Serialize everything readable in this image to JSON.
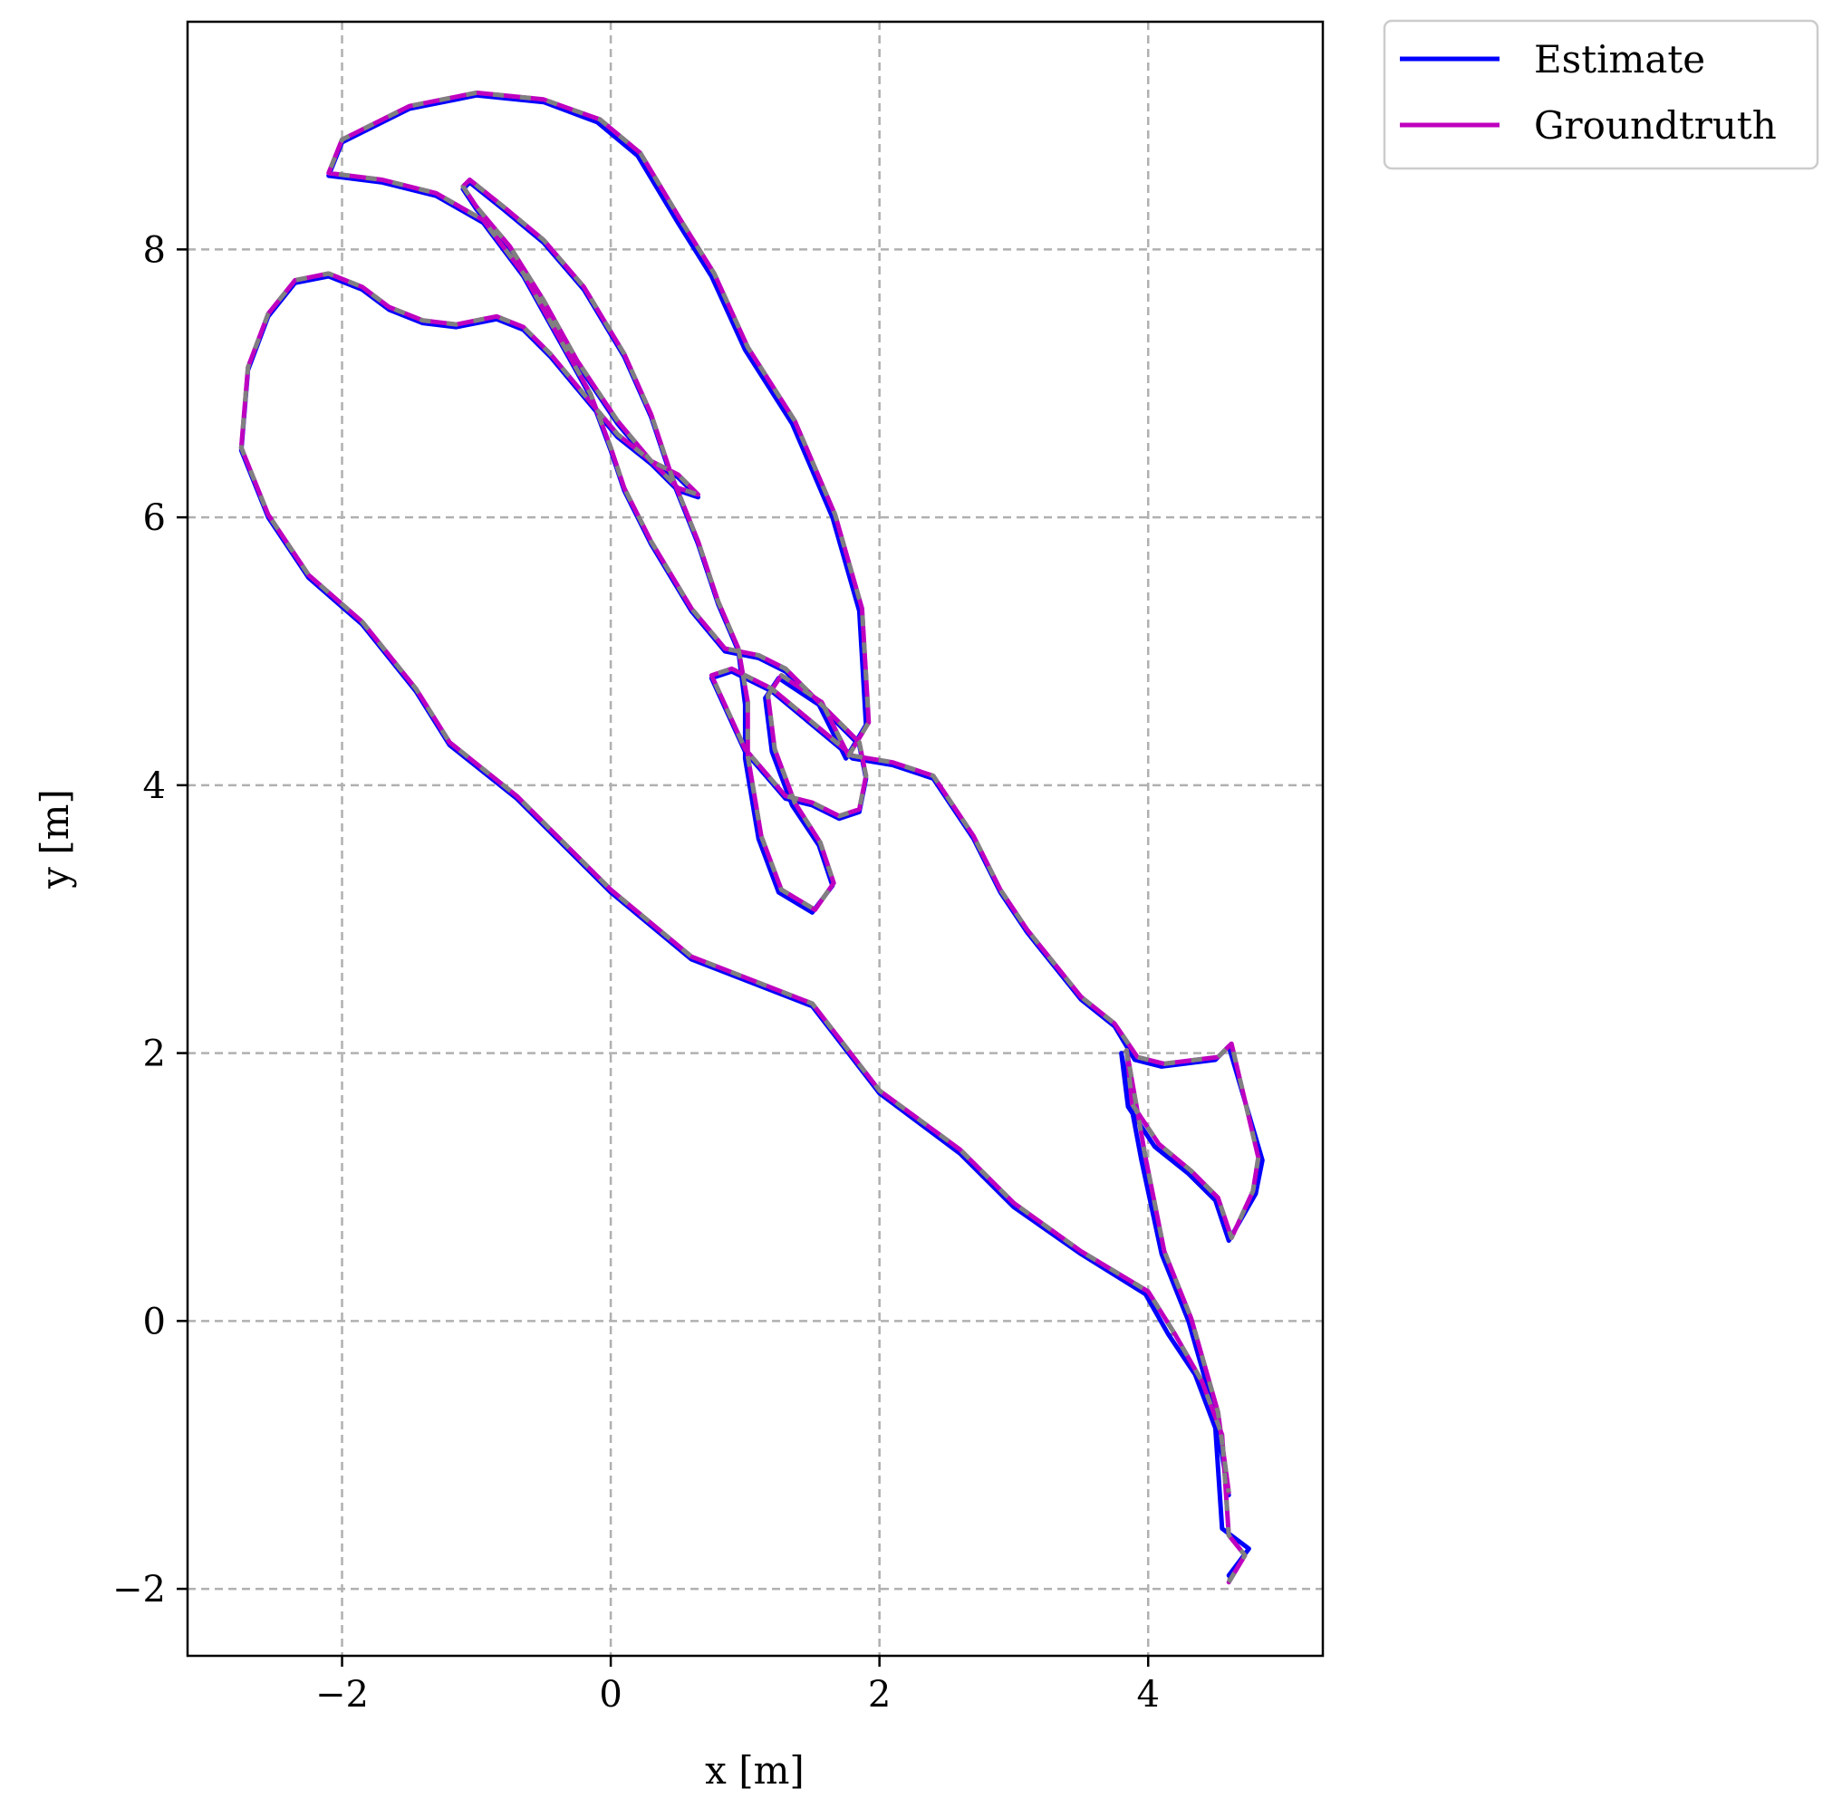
{
  "chart_data": {
    "type": "line",
    "xlabel": "x [m]",
    "ylabel": "y [m]",
    "xlim": [
      -3.15,
      5.3
    ],
    "ylim": [
      -2.5,
      9.7
    ],
    "xticks": [
      -2,
      0,
      2,
      4
    ],
    "yticks": [
      -2,
      0,
      2,
      4,
      6,
      8
    ],
    "xtick_labels": [
      "−2",
      "0",
      "2",
      "4"
    ],
    "ytick_labels": [
      "−2",
      "0",
      "2",
      "4",
      "6",
      "8"
    ],
    "grid": true,
    "legend_position": "outside top-right",
    "series": [
      {
        "name": "Estimate",
        "color": "#0000ff",
        "x": [
          4.6,
          4.75,
          4.55,
          4.5,
          4.35,
          4.15,
          3.98,
          3.5,
          3.0,
          2.6,
          2.0,
          1.5,
          0.6,
          0.0,
          -0.7,
          -1.2,
          -1.45,
          -1.85,
          -2.25,
          -2.55,
          -2.75,
          -2.7,
          -2.55,
          -2.35,
          -2.1,
          -1.85,
          -1.65,
          -1.4,
          -1.15,
          -0.85,
          -0.65,
          -0.45,
          -0.2,
          0.05,
          0.3,
          0.5,
          0.65,
          0.5,
          0.3,
          0.05,
          -0.25,
          -0.5,
          -0.75,
          -1.0,
          -1.1,
          -1.05,
          -0.8,
          -0.5,
          -0.2,
          0.1,
          0.3,
          0.45,
          0.65,
          0.8,
          0.95,
          1.0,
          1.0,
          1.1,
          1.25,
          1.5,
          1.65,
          1.55,
          1.35,
          1.2,
          1.15,
          1.25,
          1.55,
          1.75,
          1.9,
          1.85,
          1.65,
          1.35,
          1.0,
          0.75,
          0.5,
          0.2,
          -0.1,
          -0.5,
          -1.0,
          -1.5,
          -2.0,
          -2.1,
          -1.7,
          -1.3,
          -0.95,
          -0.65,
          -0.4,
          -0.15,
          0.0,
          0.1,
          0.3,
          0.6,
          0.85,
          1.1,
          1.3,
          1.5,
          1.7,
          1.85,
          1.9,
          1.85,
          1.7,
          1.5,
          1.3,
          1.0,
          0.75,
          0.9,
          1.2,
          1.5,
          1.8,
          2.1,
          2.4,
          2.7,
          2.9,
          3.1,
          3.3,
          3.5,
          3.75,
          3.9,
          4.1,
          4.5,
          4.6,
          4.85,
          4.8,
          4.6,
          4.5,
          4.3,
          4.05,
          3.85,
          3.8,
          3.95,
          4.1,
          4.3,
          4.5,
          4.6
        ],
        "y": [
          -1.9,
          -1.7,
          -1.55,
          -0.8,
          -0.4,
          -0.1,
          0.2,
          0.5,
          0.85,
          1.25,
          1.7,
          2.35,
          2.7,
          3.2,
          3.9,
          4.3,
          4.7,
          5.2,
          5.55,
          6.0,
          6.5,
          7.1,
          7.5,
          7.75,
          7.8,
          7.7,
          7.55,
          7.45,
          7.42,
          7.48,
          7.4,
          7.2,
          6.9,
          6.6,
          6.4,
          6.3,
          6.15,
          6.2,
          6.4,
          6.7,
          7.15,
          7.6,
          8.0,
          8.3,
          8.45,
          8.5,
          8.3,
          8.05,
          7.7,
          7.2,
          6.75,
          6.3,
          5.8,
          5.35,
          5.0,
          4.6,
          4.2,
          3.6,
          3.2,
          3.05,
          3.25,
          3.55,
          3.85,
          4.25,
          4.65,
          4.8,
          4.6,
          4.2,
          4.45,
          5.3,
          6.0,
          6.7,
          7.25,
          7.8,
          8.2,
          8.7,
          8.95,
          9.1,
          9.15,
          9.05,
          8.8,
          8.55,
          8.5,
          8.4,
          8.2,
          7.8,
          7.35,
          6.9,
          6.5,
          6.2,
          5.8,
          5.3,
          5.0,
          4.95,
          4.85,
          4.65,
          4.45,
          4.3,
          4.05,
          3.8,
          3.75,
          3.85,
          3.9,
          4.25,
          4.8,
          4.85,
          4.7,
          4.45,
          4.2,
          4.15,
          4.05,
          3.6,
          3.2,
          2.9,
          2.65,
          2.4,
          2.2,
          1.95,
          1.9,
          1.95,
          2.05,
          1.2,
          0.95,
          0.6,
          0.9,
          1.1,
          1.3,
          1.6,
          2.0,
          1.2,
          0.5,
          0.0,
          -0.7,
          -1.3
        ]
      },
      {
        "name": "Groundtruth",
        "color": "#bf00bf",
        "x": [
          4.6,
          4.72,
          4.6,
          4.55,
          4.4,
          4.2,
          4.0,
          3.5,
          3.0,
          2.6,
          2.0,
          1.5,
          0.6,
          0.0,
          -0.7,
          -1.2,
          -1.45,
          -1.85,
          -2.25,
          -2.55,
          -2.75,
          -2.7,
          -2.55,
          -2.35,
          -2.1,
          -1.85,
          -1.65,
          -1.4,
          -1.15,
          -0.85,
          -0.65,
          -0.45,
          -0.2,
          0.05,
          0.3,
          0.5,
          0.65,
          0.5,
          0.3,
          0.05,
          -0.25,
          -0.5,
          -0.75,
          -1.0,
          -1.1,
          -1.05,
          -0.8,
          -0.5,
          -0.2,
          0.1,
          0.3,
          0.45,
          0.65,
          0.8,
          0.95,
          1.02,
          1.02,
          1.12,
          1.27,
          1.52,
          1.66,
          1.56,
          1.37,
          1.22,
          1.17,
          1.27,
          1.57,
          1.77,
          1.92,
          1.87,
          1.67,
          1.37,
          1.02,
          0.77,
          0.52,
          0.22,
          -0.08,
          -0.5,
          -1.0,
          -1.5,
          -2.0,
          -2.1,
          -1.7,
          -1.3,
          -0.95,
          -0.65,
          -0.4,
          -0.15,
          0.0,
          0.1,
          0.3,
          0.6,
          0.85,
          1.1,
          1.3,
          1.5,
          1.7,
          1.85,
          1.9,
          1.85,
          1.7,
          1.5,
          1.3,
          1.0,
          0.75,
          0.9,
          1.2,
          1.5,
          1.8,
          2.1,
          2.4,
          2.7,
          2.9,
          3.1,
          3.3,
          3.5,
          3.75,
          3.92,
          4.12,
          4.52,
          4.62,
          4.82,
          4.78,
          4.62,
          4.52,
          4.32,
          4.08,
          3.88,
          3.84,
          3.98,
          4.12,
          4.32,
          4.52,
          4.6
        ],
        "y": [
          -1.95,
          -1.75,
          -1.6,
          -0.85,
          -0.45,
          -0.1,
          0.22,
          0.52,
          0.88,
          1.28,
          1.72,
          2.37,
          2.72,
          3.22,
          3.92,
          4.32,
          4.72,
          5.22,
          5.57,
          6.02,
          6.52,
          7.12,
          7.52,
          7.77,
          7.82,
          7.72,
          7.57,
          7.47,
          7.44,
          7.5,
          7.42,
          7.22,
          6.92,
          6.62,
          6.42,
          6.32,
          6.17,
          6.22,
          6.42,
          6.72,
          7.17,
          7.62,
          8.02,
          8.32,
          8.47,
          8.52,
          8.32,
          8.07,
          7.72,
          7.22,
          6.77,
          6.32,
          5.82,
          5.37,
          5.02,
          4.62,
          4.22,
          3.62,
          3.22,
          3.07,
          3.27,
          3.57,
          3.87,
          4.27,
          4.67,
          4.82,
          4.62,
          4.22,
          4.47,
          5.32,
          6.02,
          6.72,
          7.27,
          7.82,
          8.22,
          8.72,
          8.97,
          9.12,
          9.17,
          9.07,
          8.82,
          8.57,
          8.52,
          8.42,
          8.22,
          7.82,
          7.37,
          6.92,
          6.52,
          6.22,
          5.82,
          5.32,
          5.02,
          4.97,
          4.87,
          4.67,
          4.47,
          4.32,
          4.07,
          3.82,
          3.77,
          3.87,
          3.92,
          4.27,
          4.82,
          4.87,
          4.72,
          4.47,
          4.22,
          4.17,
          4.07,
          3.62,
          3.22,
          2.92,
          2.67,
          2.42,
          2.22,
          1.97,
          1.92,
          1.97,
          2.07,
          1.22,
          0.97,
          0.62,
          0.92,
          1.12,
          1.32,
          1.62,
          2.02,
          1.22,
          0.52,
          0.02,
          -0.68,
          -1.28
        ]
      }
    ]
  }
}
